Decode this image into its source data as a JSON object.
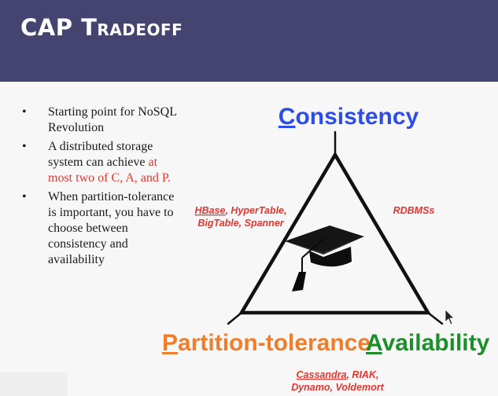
{
  "slide": {
    "title": "CAP Tradeoff",
    "bullets": [
      {
        "text": "Starting point for NoSQL Revolution",
        "highlight": ""
      },
      {
        "text": "A distributed storage system can achieve ",
        "highlight": "at most two of C, A, and P."
      },
      {
        "text": "When partition-tolerance is important, you have to choose between consistency and availability",
        "highlight": ""
      }
    ]
  },
  "diagram": {
    "vertices": {
      "consistency": {
        "initial": "C",
        "rest": "onsistency",
        "color": "#2c4ee6"
      },
      "partition": {
        "initial": "P",
        "rest": "artition-tolerance",
        "color": "#f07d2a"
      },
      "availability": {
        "initial": "A",
        "rest": "vailability",
        "color": "#1c8f2a"
      }
    },
    "edge_systems": {
      "left": {
        "first": "HBase",
        "rest": ", HyperTable,",
        "line2": "BigTable, Spanner"
      },
      "right": {
        "text": "RDBMSs"
      },
      "bottom": {
        "first": "Cassandra",
        "rest": ", RIAK,",
        "line2": "Dynamo, Voldemort"
      }
    },
    "center_icon": "graduation-cap-icon",
    "colors": {
      "systems": "#e8342f",
      "line": "#111111"
    }
  },
  "cursor_icon": "mouse-pointer-icon"
}
